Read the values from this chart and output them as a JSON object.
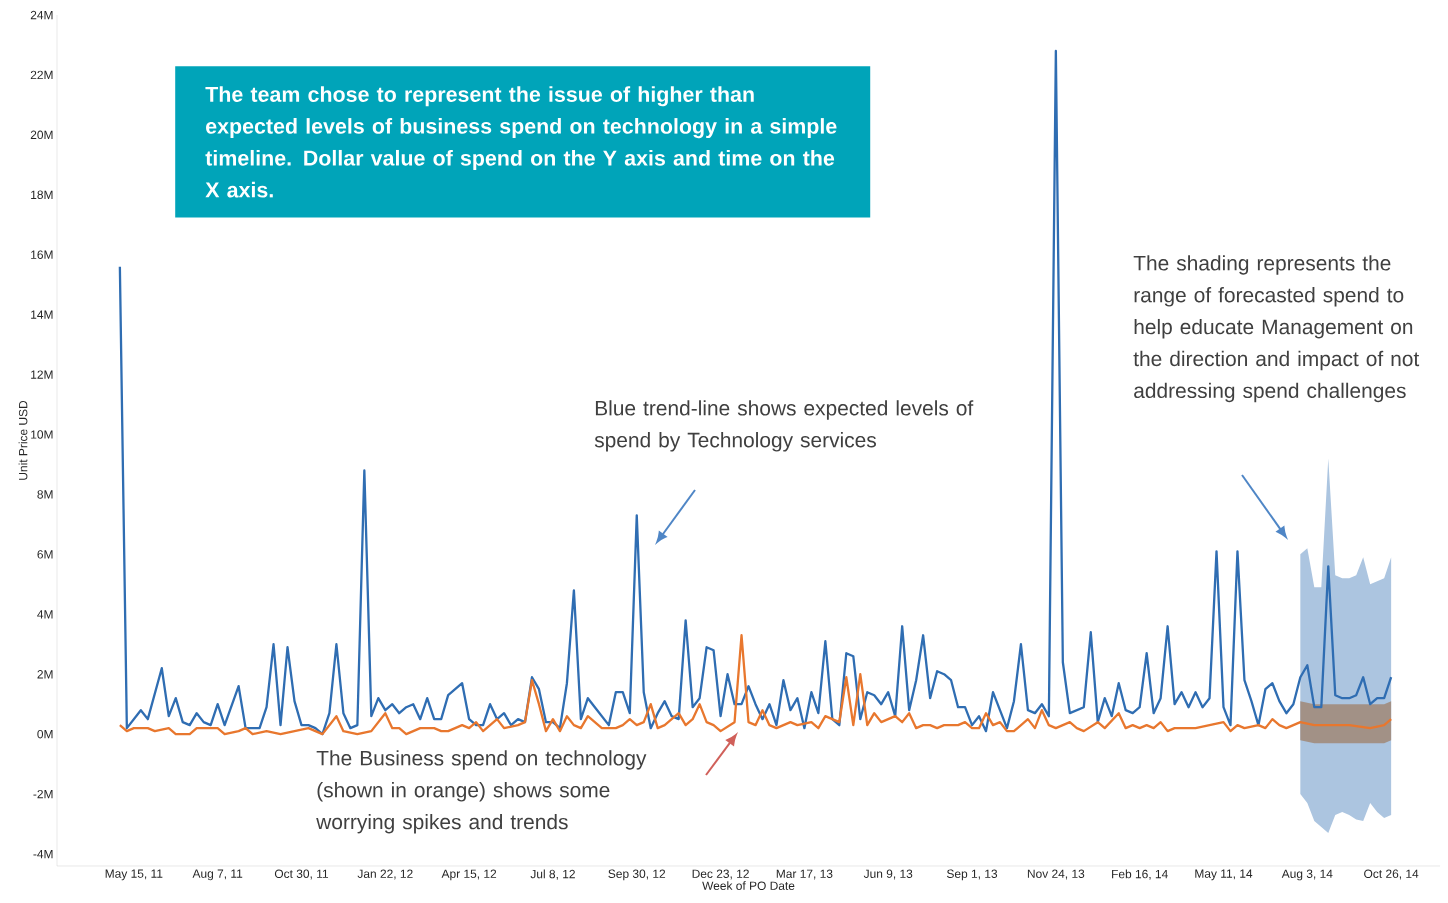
{
  "chart_data": {
    "type": "line",
    "xlabel": "Week of PO Date",
    "ylabel": "Unit Price USD",
    "xlim": [
      "2011-02-27",
      "2014-12-14"
    ],
    "ylim": [
      -4.4,
      24
    ],
    "xticks": [
      {
        "value": "2011-05-15",
        "label": "May 15, 11"
      },
      {
        "value": "2011-08-07",
        "label": "Aug 7, 11"
      },
      {
        "value": "2011-10-30",
        "label": "Oct 30, 11"
      },
      {
        "value": "2012-01-22",
        "label": "Jan 22, 12"
      },
      {
        "value": "2012-04-15",
        "label": "Apr 15, 12"
      },
      {
        "value": "2012-07-08",
        "label": "Jul 8, 12"
      },
      {
        "value": "2012-09-30",
        "label": "Sep 30, 12"
      },
      {
        "value": "2012-12-23",
        "label": "Dec 23, 12"
      },
      {
        "value": "2013-03-17",
        "label": "Mar 17, 13"
      },
      {
        "value": "2013-06-09",
        "label": "Jun 9, 13"
      },
      {
        "value": "2013-09-01",
        "label": "Sep 1, 13"
      },
      {
        "value": "2013-11-24",
        "label": "Nov 24, 13"
      },
      {
        "value": "2014-02-16",
        "label": "Feb 16, 14"
      },
      {
        "value": "2014-05-11",
        "label": "May 11, 14"
      },
      {
        "value": "2014-08-03",
        "label": "Aug 3, 14"
      },
      {
        "value": "2014-10-26",
        "label": "Oct 26, 14"
      }
    ],
    "yticks": [
      {
        "value": -4,
        "label": "-4M"
      },
      {
        "value": -2,
        "label": "-2M"
      },
      {
        "value": 0,
        "label": "0M"
      },
      {
        "value": 2,
        "label": "2M"
      },
      {
        "value": 4,
        "label": "4M"
      },
      {
        "value": 6,
        "label": "6M"
      },
      {
        "value": 8,
        "label": "8M"
      },
      {
        "value": 10,
        "label": "10M"
      },
      {
        "value": 12,
        "label": "12M"
      },
      {
        "value": 14,
        "label": "14M"
      },
      {
        "value": 16,
        "label": "16M"
      },
      {
        "value": 18,
        "label": "18M"
      },
      {
        "value": 20,
        "label": "20M"
      },
      {
        "value": 22,
        "label": "22M"
      },
      {
        "value": 24,
        "label": "24M"
      }
    ],
    "annotations": [
      "The team chose to represent the issue of higher than expected levels of business spend on technology in a simple timeline. Dollar value of spend on the Y axis and time on the X axis.",
      "Blue trend-line shows expected levels of spend by Technology services",
      "The Business spend on technology (shown in orange) shows some worrying spikes and trends",
      "The shading represents the range of forecasted spend to help educate Management on the direction and impact of not addressing spend challenges"
    ],
    "series": [
      {
        "color": "#2f6db2",
        "x": [
          "2011-05-01",
          "2011-05-08",
          "2011-05-22",
          "2011-05-29",
          "2011-06-12",
          "2011-06-19",
          "2011-06-26",
          "2011-07-03",
          "2011-07-10",
          "2011-07-17",
          "2011-07-24",
          "2011-07-31",
          "2011-08-07",
          "2011-08-14",
          "2011-08-28",
          "2011-09-04",
          "2011-09-11",
          "2011-09-18",
          "2011-09-25",
          "2011-10-02",
          "2011-10-09",
          "2011-10-16",
          "2011-10-23",
          "2011-10-30",
          "2011-11-06",
          "2011-11-13",
          "2011-11-20",
          "2011-11-27",
          "2011-12-04",
          "2011-12-11",
          "2011-12-18",
          "2011-12-25",
          "2012-01-01",
          "2012-01-08",
          "2012-01-15",
          "2012-01-22",
          "2012-01-29",
          "2012-02-05",
          "2012-02-12",
          "2012-02-19",
          "2012-02-26",
          "2012-03-04",
          "2012-03-11",
          "2012-03-18",
          "2012-03-25",
          "2012-04-01",
          "2012-04-08",
          "2012-04-15",
          "2012-04-22",
          "2012-04-29",
          "2012-05-06",
          "2012-05-13",
          "2012-05-20",
          "2012-05-27",
          "2012-06-03",
          "2012-06-10",
          "2012-06-17",
          "2012-06-24",
          "2012-07-01",
          "2012-07-08",
          "2012-07-15",
          "2012-07-22",
          "2012-07-29",
          "2012-08-05",
          "2012-08-12",
          "2012-08-19",
          "2012-08-26",
          "2012-09-02",
          "2012-09-09",
          "2012-09-16",
          "2012-09-23",
          "2012-09-30",
          "2012-10-07",
          "2012-10-14",
          "2012-10-21",
          "2012-10-28",
          "2012-11-04",
          "2012-11-11",
          "2012-11-18",
          "2012-11-25",
          "2012-12-02",
          "2012-12-09",
          "2012-12-16",
          "2012-12-23",
          "2012-12-30",
          "2013-01-06",
          "2013-01-13",
          "2013-01-20",
          "2013-01-27",
          "2013-02-03",
          "2013-02-10",
          "2013-02-17",
          "2013-02-24",
          "2013-03-03",
          "2013-03-10",
          "2013-03-17",
          "2013-03-24",
          "2013-03-31",
          "2013-04-07",
          "2013-04-14",
          "2013-04-21",
          "2013-04-28",
          "2013-05-05",
          "2013-05-12",
          "2013-05-19",
          "2013-05-26",
          "2013-06-02",
          "2013-06-09",
          "2013-06-16",
          "2013-06-23",
          "2013-06-30",
          "2013-07-07",
          "2013-07-14",
          "2013-07-21",
          "2013-07-28",
          "2013-08-04",
          "2013-08-11",
          "2013-08-18",
          "2013-08-25",
          "2013-09-01",
          "2013-09-08",
          "2013-09-15",
          "2013-09-22",
          "2013-09-29",
          "2013-10-06",
          "2013-10-13",
          "2013-10-20",
          "2013-10-27",
          "2013-11-03",
          "2013-11-10",
          "2013-11-17",
          "2013-11-24",
          "2013-12-01",
          "2013-12-08",
          "2013-12-15",
          "2013-12-22",
          "2013-12-29",
          "2014-01-05",
          "2014-01-12",
          "2014-01-19",
          "2014-01-26",
          "2014-02-02",
          "2014-02-09",
          "2014-02-16",
          "2014-02-23",
          "2014-03-02",
          "2014-03-09",
          "2014-03-16",
          "2014-03-23",
          "2014-03-30",
          "2014-04-06",
          "2014-04-13",
          "2014-04-20",
          "2014-04-27",
          "2014-05-04",
          "2014-05-11",
          "2014-05-18",
          "2014-05-25",
          "2014-06-01",
          "2014-06-08",
          "2014-06-15",
          "2014-06-22",
          "2014-06-29",
          "2014-07-06",
          "2014-07-13",
          "2014-07-20",
          "2014-07-27",
          "2014-08-03",
          "2014-08-10",
          "2014-08-17",
          "2014-08-24",
          "2014-08-31",
          "2014-09-07",
          "2014-09-14",
          "2014-09-21",
          "2014-09-28",
          "2014-10-05",
          "2014-10-12",
          "2014-10-19",
          "2014-10-26"
        ],
        "values": [
          15.6,
          0.2,
          0.8,
          0.5,
          2.2,
          0.6,
          1.2,
          0.4,
          0.3,
          0.7,
          0.4,
          0.3,
          1.0,
          0.3,
          1.6,
          0.2,
          0.2,
          0.2,
          0.9,
          3.0,
          0.3,
          2.9,
          1.1,
          0.3,
          0.3,
          0.2,
          0.0,
          0.7,
          3.0,
          0.7,
          0.2,
          0.3,
          8.8,
          0.6,
          1.2,
          0.8,
          1.0,
          0.7,
          0.9,
          1.0,
          0.5,
          1.2,
          0.5,
          0.5,
          1.3,
          1.5,
          1.7,
          0.5,
          0.3,
          0.3,
          1.0,
          0.5,
          0.7,
          0.3,
          0.5,
          0.4,
          1.9,
          1.5,
          0.4,
          0.4,
          0.2,
          1.7,
          4.8,
          0.5,
          1.2,
          0.9,
          0.6,
          0.3,
          1.4,
          1.4,
          0.7,
          7.3,
          1.4,
          0.2,
          0.7,
          1.1,
          0.6,
          0.5,
          3.8,
          0.9,
          1.2,
          2.9,
          2.8,
          0.6,
          2.0,
          1.0,
          1.0,
          1.6,
          1.0,
          0.5,
          1.0,
          0.3,
          1.8,
          0.8,
          1.2,
          0.2,
          1.4,
          0.7,
          3.1,
          0.5,
          0.3,
          2.7,
          2.6,
          0.5,
          1.4,
          1.3,
          1.0,
          1.4,
          0.6,
          3.6,
          0.8,
          1.8,
          3.3,
          1.2,
          2.1,
          2.0,
          1.8,
          0.9,
          0.9,
          0.3,
          0.6,
          0.1,
          1.4,
          0.8,
          0.2,
          1.1,
          3.0,
          0.8,
          0.7,
          1.0,
          0.6,
          22.8,
          2.4,
          0.7,
          0.8,
          0.9,
          3.4,
          0.4,
          1.2,
          0.6,
          1.7,
          0.8,
          0.7,
          0.9,
          2.7,
          0.7,
          1.2,
          3.6,
          1.0,
          1.4,
          0.9,
          1.4,
          0.9,
          1.2,
          6.1,
          0.9,
          0.3,
          6.1,
          1.8,
          1.1,
          0.3,
          1.5,
          1.7,
          1.1,
          0.7,
          1.0,
          1.9,
          2.3,
          0.9,
          0.9,
          5.6,
          1.3,
          1.2,
          1.2,
          1.3,
          1.9,
          1.0,
          1.2,
          1.2,
          1.9
        ],
        "upper": [
          null,
          null,
          null,
          null,
          null,
          null,
          null,
          null,
          null,
          null,
          null,
          null,
          null,
          null,
          null,
          null,
          null,
          null,
          null,
          null,
          null,
          null,
          null,
          null,
          null,
          null,
          null,
          null,
          null,
          null,
          null,
          null,
          null,
          null,
          null,
          null,
          null,
          null,
          null,
          null,
          null,
          null,
          null,
          null,
          null,
          null,
          null,
          null,
          null,
          null,
          null,
          null,
          null,
          null,
          null,
          null,
          null,
          null,
          null,
          null,
          null,
          null,
          null,
          null,
          null,
          null,
          null,
          null,
          null,
          null,
          null,
          null,
          null,
          null,
          null,
          null,
          null,
          null,
          null,
          null,
          null,
          null,
          null,
          null,
          null,
          null,
          null,
          null,
          null,
          null,
          null,
          null,
          null,
          null,
          null,
          null,
          null,
          null,
          null,
          null,
          null,
          null,
          null,
          null,
          null,
          null,
          null,
          null,
          null,
          null,
          null,
          null,
          null,
          null,
          null,
          null,
          null,
          null,
          null,
          null,
          null,
          null,
          null,
          null,
          null,
          null,
          null,
          null,
          null,
          null,
          null,
          null,
          null,
          null,
          null,
          null,
          null,
          null,
          null,
          null,
          null,
          null,
          null,
          null,
          null,
          null,
          null,
          null,
          null,
          null,
          null,
          null,
          null,
          null,
          null,
          null,
          null,
          null,
          null,
          null,
          null,
          null,
          null,
          null,
          null,
          null,
          6.0,
          6.2,
          4.9,
          4.9,
          9.2,
          5.3,
          5.2,
          5.2,
          5.3,
          5.9,
          5.0,
          5.1,
          5.2,
          5.9
        ],
        "lower": [
          null,
          null,
          null,
          null,
          null,
          null,
          null,
          null,
          null,
          null,
          null,
          null,
          null,
          null,
          null,
          null,
          null,
          null,
          null,
          null,
          null,
          null,
          null,
          null,
          null,
          null,
          null,
          null,
          null,
          null,
          null,
          null,
          null,
          null,
          null,
          null,
          null,
          null,
          null,
          null,
          null,
          null,
          null,
          null,
          null,
          null,
          null,
          null,
          null,
          null,
          null,
          null,
          null,
          null,
          null,
          null,
          null,
          null,
          null,
          null,
          null,
          null,
          null,
          null,
          null,
          null,
          null,
          null,
          null,
          null,
          null,
          null,
          null,
          null,
          null,
          null,
          null,
          null,
          null,
          null,
          null,
          null,
          null,
          null,
          null,
          null,
          null,
          null,
          null,
          null,
          null,
          null,
          null,
          null,
          null,
          null,
          null,
          null,
          null,
          null,
          null,
          null,
          null,
          null,
          null,
          null,
          null,
          null,
          null,
          null,
          null,
          null,
          null,
          null,
          null,
          null,
          null,
          null,
          null,
          null,
          null,
          null,
          null,
          null,
          null,
          null,
          null,
          null,
          null,
          null,
          null,
          null,
          null,
          null,
          null,
          null,
          null,
          null,
          null,
          null,
          null,
          null,
          null,
          null,
          null,
          null,
          null,
          null,
          null,
          null,
          null,
          null,
          null,
          null,
          null,
          null,
          null,
          null,
          null,
          null,
          null,
          null,
          null,
          null,
          null,
          null,
          -2.0,
          -2.3,
          -2.9,
          -3.1,
          -3.3,
          -2.7,
          -2.6,
          -2.7,
          -2.85,
          -2.9,
          -2.3,
          -2.6,
          -2.8,
          -2.7
        ]
      },
      {
        "color": "#e8772e",
        "x": [
          "2011-05-01",
          "2011-05-08",
          "2011-05-15",
          "2011-05-29",
          "2011-06-05",
          "2011-06-19",
          "2011-06-26",
          "2011-07-10",
          "2011-07-17",
          "2011-07-31",
          "2011-08-07",
          "2011-08-14",
          "2011-08-28",
          "2011-09-04",
          "2011-09-11",
          "2011-09-25",
          "2011-10-09",
          "2011-10-23",
          "2011-11-06",
          "2011-11-20",
          "2011-12-04",
          "2011-12-11",
          "2011-12-25",
          "2012-01-08",
          "2012-01-22",
          "2012-01-29",
          "2012-02-05",
          "2012-02-12",
          "2012-02-26",
          "2012-03-11",
          "2012-03-18",
          "2012-03-25",
          "2012-04-08",
          "2012-04-15",
          "2012-04-22",
          "2012-04-29",
          "2012-05-13",
          "2012-05-20",
          "2012-06-03",
          "2012-06-10",
          "2012-06-17",
          "2012-06-24",
          "2012-07-01",
          "2012-07-08",
          "2012-07-15",
          "2012-07-22",
          "2012-07-29",
          "2012-08-05",
          "2012-08-12",
          "2012-08-26",
          "2012-09-09",
          "2012-09-16",
          "2012-09-23",
          "2012-09-30",
          "2012-10-07",
          "2012-10-14",
          "2012-10-21",
          "2012-10-28",
          "2012-11-11",
          "2012-11-18",
          "2012-11-25",
          "2012-12-02",
          "2012-12-09",
          "2012-12-16",
          "2012-12-23",
          "2013-01-06",
          "2013-01-13",
          "2013-01-20",
          "2013-01-27",
          "2013-02-03",
          "2013-02-10",
          "2013-02-17",
          "2013-02-24",
          "2013-03-03",
          "2013-03-10",
          "2013-03-24",
          "2013-03-31",
          "2013-04-07",
          "2013-04-14",
          "2013-04-21",
          "2013-04-28",
          "2013-05-05",
          "2013-05-12",
          "2013-05-19",
          "2013-05-26",
          "2013-06-02",
          "2013-06-09",
          "2013-06-16",
          "2013-06-23",
          "2013-06-30",
          "2013-07-07",
          "2013-07-14",
          "2013-07-21",
          "2013-07-28",
          "2013-08-04",
          "2013-08-18",
          "2013-08-25",
          "2013-09-01",
          "2013-09-08",
          "2013-09-15",
          "2013-09-22",
          "2013-09-29",
          "2013-10-06",
          "2013-10-13",
          "2013-10-20",
          "2013-10-27",
          "2013-11-03",
          "2013-11-10",
          "2013-11-17",
          "2013-11-24",
          "2013-12-08",
          "2013-12-15",
          "2013-12-22",
          "2014-01-05",
          "2014-01-12",
          "2014-01-26",
          "2014-02-02",
          "2014-02-09",
          "2014-02-16",
          "2014-02-23",
          "2014-03-02",
          "2014-03-09",
          "2014-03-16",
          "2014-03-23",
          "2014-04-13",
          "2014-04-27",
          "2014-05-11",
          "2014-05-18",
          "2014-05-25",
          "2014-06-01",
          "2014-06-15",
          "2014-06-22",
          "2014-06-29",
          "2014-07-06",
          "2014-07-13",
          "2014-07-27",
          "2014-08-10",
          "2014-08-24",
          "2014-09-07",
          "2014-09-14",
          "2014-10-05",
          "2014-10-19",
          "2014-10-26"
        ],
        "values": [
          0.3,
          0.1,
          0.2,
          0.2,
          0.1,
          0.2,
          0.0,
          0.0,
          0.2,
          0.2,
          0.2,
          0.0,
          0.1,
          0.2,
          0.0,
          0.1,
          0.0,
          0.1,
          0.2,
          0.0,
          0.6,
          0.1,
          0.0,
          0.1,
          0.7,
          0.2,
          0.2,
          0.0,
          0.2,
          0.2,
          0.1,
          0.1,
          0.3,
          0.2,
          0.4,
          0.1,
          0.5,
          0.2,
          0.3,
          0.4,
          1.8,
          1.0,
          0.1,
          0.5,
          0.1,
          0.6,
          0.3,
          0.2,
          0.6,
          0.2,
          0.2,
          0.3,
          0.5,
          0.3,
          0.4,
          1.0,
          0.2,
          0.3,
          0.7,
          0.3,
          0.5,
          1.0,
          0.4,
          0.3,
          0.1,
          0.4,
          3.3,
          0.4,
          0.3,
          0.8,
          0.3,
          0.2,
          0.3,
          0.4,
          0.3,
          0.4,
          0.2,
          0.6,
          0.5,
          0.4,
          1.9,
          0.3,
          2.0,
          0.3,
          0.7,
          0.4,
          0.5,
          0.6,
          0.4,
          0.7,
          0.2,
          0.3,
          0.3,
          0.2,
          0.3,
          0.3,
          0.4,
          0.2,
          0.2,
          0.7,
          0.3,
          0.4,
          0.1,
          0.1,
          0.3,
          0.5,
          0.2,
          0.8,
          0.3,
          0.2,
          0.4,
          0.2,
          0.1,
          0.4,
          0.2,
          0.7,
          0.2,
          0.3,
          0.2,
          0.3,
          0.2,
          0.4,
          0.1,
          0.2,
          0.2,
          0.3,
          0.4,
          0.1,
          0.3,
          0.2,
          0.3,
          0.2,
          0.5,
          0.3,
          0.2,
          0.4,
          0.3,
          0.3,
          0.3,
          0.3,
          0.2,
          0.3,
          0.5
        ],
        "upper": [
          null,
          null,
          null,
          null,
          null,
          null,
          null,
          null,
          null,
          null,
          null,
          null,
          null,
          null,
          null,
          null,
          null,
          null,
          null,
          null,
          null,
          null,
          null,
          null,
          null,
          null,
          null,
          null,
          null,
          null,
          null,
          null,
          null,
          null,
          null,
          null,
          null,
          null,
          null,
          null,
          null,
          null,
          null,
          null,
          null,
          null,
          null,
          null,
          null,
          null,
          null,
          null,
          null,
          null,
          null,
          null,
          null,
          null,
          null,
          null,
          null,
          null,
          null,
          null,
          null,
          null,
          null,
          null,
          null,
          null,
          null,
          null,
          null,
          null,
          null,
          null,
          null,
          null,
          null,
          null,
          null,
          null,
          null,
          null,
          null,
          null,
          null,
          null,
          null,
          null,
          null,
          null,
          null,
          null,
          null,
          null,
          null,
          null,
          null,
          null,
          null,
          null,
          null,
          null,
          null,
          null,
          null,
          null,
          null,
          null,
          null,
          null,
          null,
          null,
          null,
          null,
          null,
          null,
          null,
          null,
          null,
          null,
          null,
          null,
          null,
          null,
          null,
          null,
          null,
          null,
          null,
          null,
          null,
          null,
          null,
          1.1,
          1.0,
          1.0,
          1.0,
          1.0,
          1.0,
          1.0,
          1.1
        ],
        "lower": [
          null,
          null,
          null,
          null,
          null,
          null,
          null,
          null,
          null,
          null,
          null,
          null,
          null,
          null,
          null,
          null,
          null,
          null,
          null,
          null,
          null,
          null,
          null,
          null,
          null,
          null,
          null,
          null,
          null,
          null,
          null,
          null,
          null,
          null,
          null,
          null,
          null,
          null,
          null,
          null,
          null,
          null,
          null,
          null,
          null,
          null,
          null,
          null,
          null,
          null,
          null,
          null,
          null,
          null,
          null,
          null,
          null,
          null,
          null,
          null,
          null,
          null,
          null,
          null,
          null,
          null,
          null,
          null,
          null,
          null,
          null,
          null,
          null,
          null,
          null,
          null,
          null,
          null,
          null,
          null,
          null,
          null,
          null,
          null,
          null,
          null,
          null,
          null,
          null,
          null,
          null,
          null,
          null,
          null,
          null,
          null,
          null,
          null,
          null,
          null,
          null,
          null,
          null,
          null,
          null,
          null,
          null,
          null,
          null,
          null,
          null,
          null,
          null,
          null,
          null,
          null,
          null,
          null,
          null,
          null,
          null,
          null,
          null,
          null,
          null,
          null,
          null,
          null,
          null,
          null,
          null,
          null,
          null,
          null,
          null,
          -0.2,
          -0.3,
          -0.3,
          -0.3,
          -0.3,
          -0.3,
          -0.3,
          -0.2
        ]
      }
    ]
  }
}
